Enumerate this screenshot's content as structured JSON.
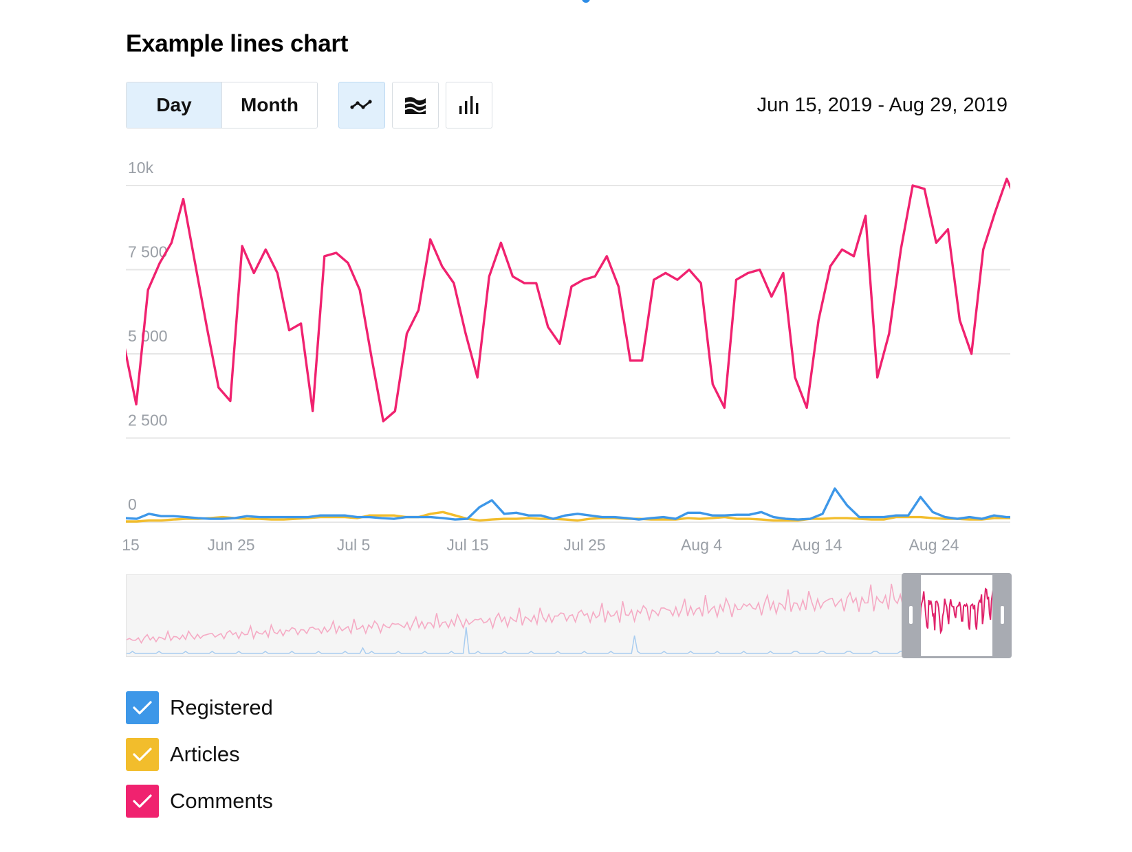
{
  "title": "Example lines chart",
  "period_toggle": {
    "options": [
      "Day",
      "Month"
    ],
    "selected": "Day"
  },
  "chart_type_buttons": [
    {
      "icon": "line-chart-icon",
      "active": true
    },
    {
      "icon": "area-chart-icon",
      "active": false
    },
    {
      "icon": "bar-chart-icon",
      "active": false
    }
  ],
  "date_range": "Jun 15, 2019 - Aug 29, 2019",
  "colors": {
    "accent": "#2d8ce6",
    "registered": "#3d97e8",
    "articles": "#f2bd2c",
    "comments": "#f0226f",
    "active_bg": "#e1f0fc"
  },
  "chart_data": {
    "type": "line",
    "x_labels": [
      "15",
      "Jun 25",
      "Jul 5",
      "Jul 15",
      "Jul 25",
      "Aug 4",
      "Aug 14",
      "Aug 24"
    ],
    "y_ticks": [
      "10k",
      "7 500",
      "5 000",
      "2 500",
      "0"
    ],
    "ylim": [
      0,
      10000
    ],
    "grid": true,
    "series": [
      {
        "name": "Comments",
        "color": "#f0226f",
        "values": [
          5200,
          3500,
          6900,
          7700,
          8300,
          9600,
          7700,
          5800,
          4000,
          3600,
          8200,
          7400,
          8100,
          7400,
          5700,
          5900,
          3300,
          7900,
          8000,
          7700,
          6900,
          4900,
          3000,
          3300,
          5600,
          6300,
          8400,
          7600,
          7100,
          5600,
          4300,
          7300,
          8300,
          7300,
          7100,
          7100,
          5800,
          5300,
          7000,
          7200,
          7300,
          7900,
          7000,
          4800,
          4800,
          7200,
          7400,
          7200,
          7500,
          7100,
          4100,
          3400,
          7200,
          7400,
          7500,
          6700,
          7400,
          4300,
          3400,
          6000,
          7600,
          8100,
          7900,
          9100,
          4300,
          5600,
          8100,
          10000,
          9900,
          8300,
          8700,
          6000,
          5000,
          8100,
          9200,
          10200,
          9400
        ]
      },
      {
        "name": "Registered",
        "color": "#3d97e8",
        "values": [
          120,
          100,
          250,
          180,
          180,
          150,
          120,
          100,
          100,
          120,
          180,
          150,
          150,
          150,
          150,
          150,
          200,
          200,
          200,
          150,
          150,
          120,
          100,
          150,
          150,
          150,
          120,
          80,
          100,
          450,
          650,
          250,
          280,
          200,
          200,
          100,
          200,
          250,
          200,
          150,
          150,
          120,
          80,
          120,
          150,
          100,
          280,
          280,
          200,
          200,
          220,
          220,
          300,
          150,
          100,
          80,
          100,
          250,
          1000,
          500,
          150,
          150,
          150,
          200,
          200,
          750,
          300,
          150,
          100,
          150,
          100,
          200,
          150,
          150
        ]
      },
      {
        "name": "Articles",
        "color": "#f2bd2c",
        "values": [
          20,
          20,
          50,
          50,
          80,
          100,
          100,
          120,
          150,
          120,
          100,
          100,
          80,
          80,
          100,
          120,
          150,
          150,
          150,
          120,
          200,
          200,
          200,
          150,
          150,
          250,
          300,
          200,
          100,
          50,
          80,
          100,
          100,
          120,
          100,
          100,
          80,
          50,
          100,
          120,
          120,
          100,
          100,
          80,
          80,
          80,
          120,
          100,
          120,
          150,
          100,
          100,
          80,
          50,
          50,
          50,
          100,
          100,
          120,
          120,
          100,
          80,
          80,
          150,
          150,
          150,
          120,
          100,
          100,
          80,
          80,
          120,
          120,
          120
        ]
      }
    ]
  },
  "legend": [
    {
      "label": "Registered",
      "color": "#3d97e8",
      "checked": true
    },
    {
      "label": "Articles",
      "color": "#f2bd2c",
      "checked": true
    },
    {
      "label": "Comments",
      "color": "#f0226f",
      "checked": true
    }
  ]
}
